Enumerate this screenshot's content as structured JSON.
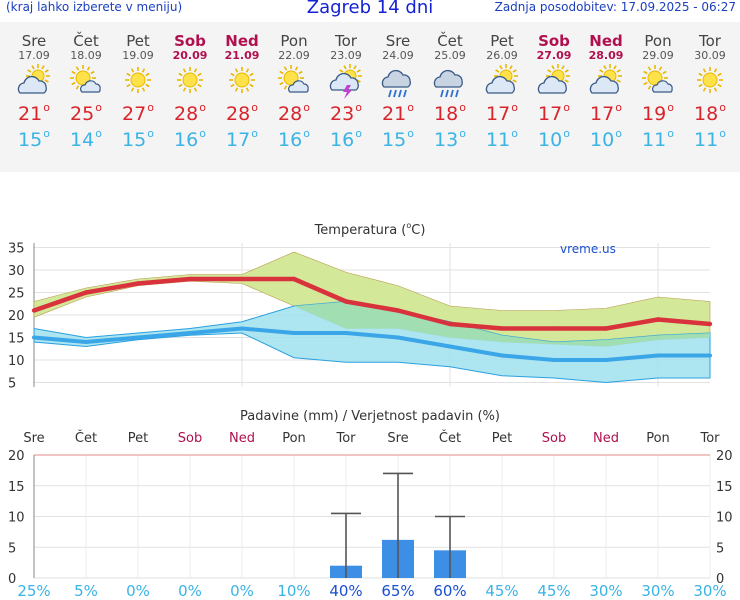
{
  "header": {
    "left_note": "(kraj lahko izberete v meniju)",
    "title": "Zagreb 14 dni",
    "updated": "Zadnja posodobitev: 17.09.2025 - 06:27"
  },
  "days": [
    {
      "name": "Sre",
      "date": "17.09",
      "weekend": false,
      "icon": "partly-cloudy-icon",
      "tmax": "21",
      "tmin": "15"
    },
    {
      "name": "Čet",
      "date": "18.09",
      "weekend": false,
      "icon": "sun-small-cloud-icon",
      "tmax": "25",
      "tmin": "14"
    },
    {
      "name": "Pet",
      "date": "19.09",
      "weekend": false,
      "icon": "sun-icon",
      "tmax": "27",
      "tmin": "15"
    },
    {
      "name": "Sob",
      "date": "20.09",
      "weekend": true,
      "icon": "sun-icon",
      "tmax": "28",
      "tmin": "16"
    },
    {
      "name": "Ned",
      "date": "21.09",
      "weekend": true,
      "icon": "sun-icon",
      "tmax": "28",
      "tmin": "17"
    },
    {
      "name": "Pon",
      "date": "22.09",
      "weekend": false,
      "icon": "sun-small-cloud-icon",
      "tmax": "28",
      "tmin": "16"
    },
    {
      "name": "Tor",
      "date": "23.09",
      "weekend": false,
      "icon": "thunderstorm-icon",
      "tmax": "23",
      "tmin": "16"
    },
    {
      "name": "Sre",
      "date": "24.09",
      "weekend": false,
      "icon": "rain-cloud-icon",
      "tmax": "21",
      "tmin": "15"
    },
    {
      "name": "Čet",
      "date": "25.09",
      "weekend": false,
      "icon": "rain-cloud-icon",
      "tmax": "18",
      "tmin": "13"
    },
    {
      "name": "Pet",
      "date": "26.09",
      "weekend": false,
      "icon": "partly-cloudy-icon",
      "tmax": "17",
      "tmin": "11"
    },
    {
      "name": "Sob",
      "date": "27.09",
      "weekend": true,
      "icon": "partly-cloudy-icon",
      "tmax": "17",
      "tmin": "10"
    },
    {
      "name": "Ned",
      "date": "28.09",
      "weekend": true,
      "icon": "partly-cloudy-icon",
      "tmax": "17",
      "tmin": "10"
    },
    {
      "name": "Pon",
      "date": "29.09",
      "weekend": false,
      "icon": "sun-small-cloud-icon",
      "tmax": "19",
      "tmin": "11"
    },
    {
      "name": "Tor",
      "date": "30.09",
      "weekend": false,
      "icon": "sun-icon",
      "tmax": "18",
      "tmin": "11"
    }
  ],
  "degree_mark": "o",
  "colors": {
    "max_line": "#d8323c",
    "max_band": "#d4e89a",
    "min_line": "#3aa6e8",
    "min_band": "#9fe0ee",
    "overlap_band": "#a0dea8",
    "precip_bar": "#3d8fe6",
    "weekend_text": "#b0104f",
    "prob_text": "#3ab3e6",
    "prob_text_strong": "#1a4fd0"
  },
  "chart_data": [
    {
      "type": "line",
      "title": "Temperatura (°C)",
      "title_prefix": "Temperatura (",
      "title_unit": "C)",
      "watermark": "vreme.us",
      "ylim": [
        4,
        36
      ],
      "yticks": [
        "5",
        "10",
        "15",
        "20",
        "25",
        "30",
        "35"
      ],
      "grid": true,
      "series": [
        {
          "name": "max",
          "values": [
            21,
            25,
            27,
            28,
            28,
            28,
            23,
            21,
            18,
            17,
            17,
            17,
            19,
            18
          ],
          "band_low": [
            19.5,
            24,
            26.5,
            27.5,
            27,
            22,
            17,
            17,
            15,
            14,
            13.5,
            13,
            14.5,
            15
          ],
          "band_high": [
            23,
            26,
            28,
            29,
            29,
            34,
            29.5,
            26.5,
            22,
            21,
            21,
            21.5,
            24,
            23
          ]
        },
        {
          "name": "min",
          "values": [
            15,
            14,
            15,
            16,
            17,
            16,
            16,
            15,
            13,
            11,
            10,
            10,
            11,
            11
          ],
          "band_low": [
            14,
            13,
            14.5,
            15.5,
            16,
            10.5,
            9.5,
            9.5,
            8.5,
            6.5,
            6,
            5,
            6,
            6
          ],
          "band_high": [
            17,
            15,
            16,
            17,
            18.5,
            22,
            23,
            21,
            18.5,
            15.5,
            14,
            14.5,
            15.5,
            16
          ]
        }
      ]
    },
    {
      "type": "bar",
      "title": "Padavine (mm) / Verjetnost padavin (%)",
      "categories": [
        "Sre",
        "Čet",
        "Pet",
        "Sob",
        "Ned",
        "Pon",
        "Tor",
        "Sre",
        "Čet",
        "Pet",
        "Sob",
        "Ned",
        "Pon",
        "Tor"
      ],
      "weekend": [
        false,
        false,
        false,
        true,
        true,
        false,
        false,
        false,
        false,
        false,
        true,
        true,
        false,
        false
      ],
      "ylim": [
        0,
        20
      ],
      "yticks": [
        "0",
        "5",
        "10",
        "15",
        "20"
      ],
      "grid": true,
      "values": [
        0,
        0,
        0,
        0,
        0,
        0,
        2,
        6.2,
        4.5,
        0,
        0,
        0,
        0,
        0
      ],
      "error_high": [
        0,
        0,
        0,
        0,
        0,
        0,
        10.5,
        17,
        10,
        0,
        0,
        0,
        0,
        0
      ],
      "probability": [
        "25%",
        "5%",
        "0%",
        "0%",
        "0%",
        "10%",
        "40%",
        "65%",
        "60%",
        "45%",
        "45%",
        "30%",
        "30%",
        "30%"
      ],
      "probability_strong": [
        false,
        false,
        false,
        false,
        false,
        false,
        true,
        true,
        true,
        false,
        false,
        false,
        false,
        false
      ]
    }
  ]
}
